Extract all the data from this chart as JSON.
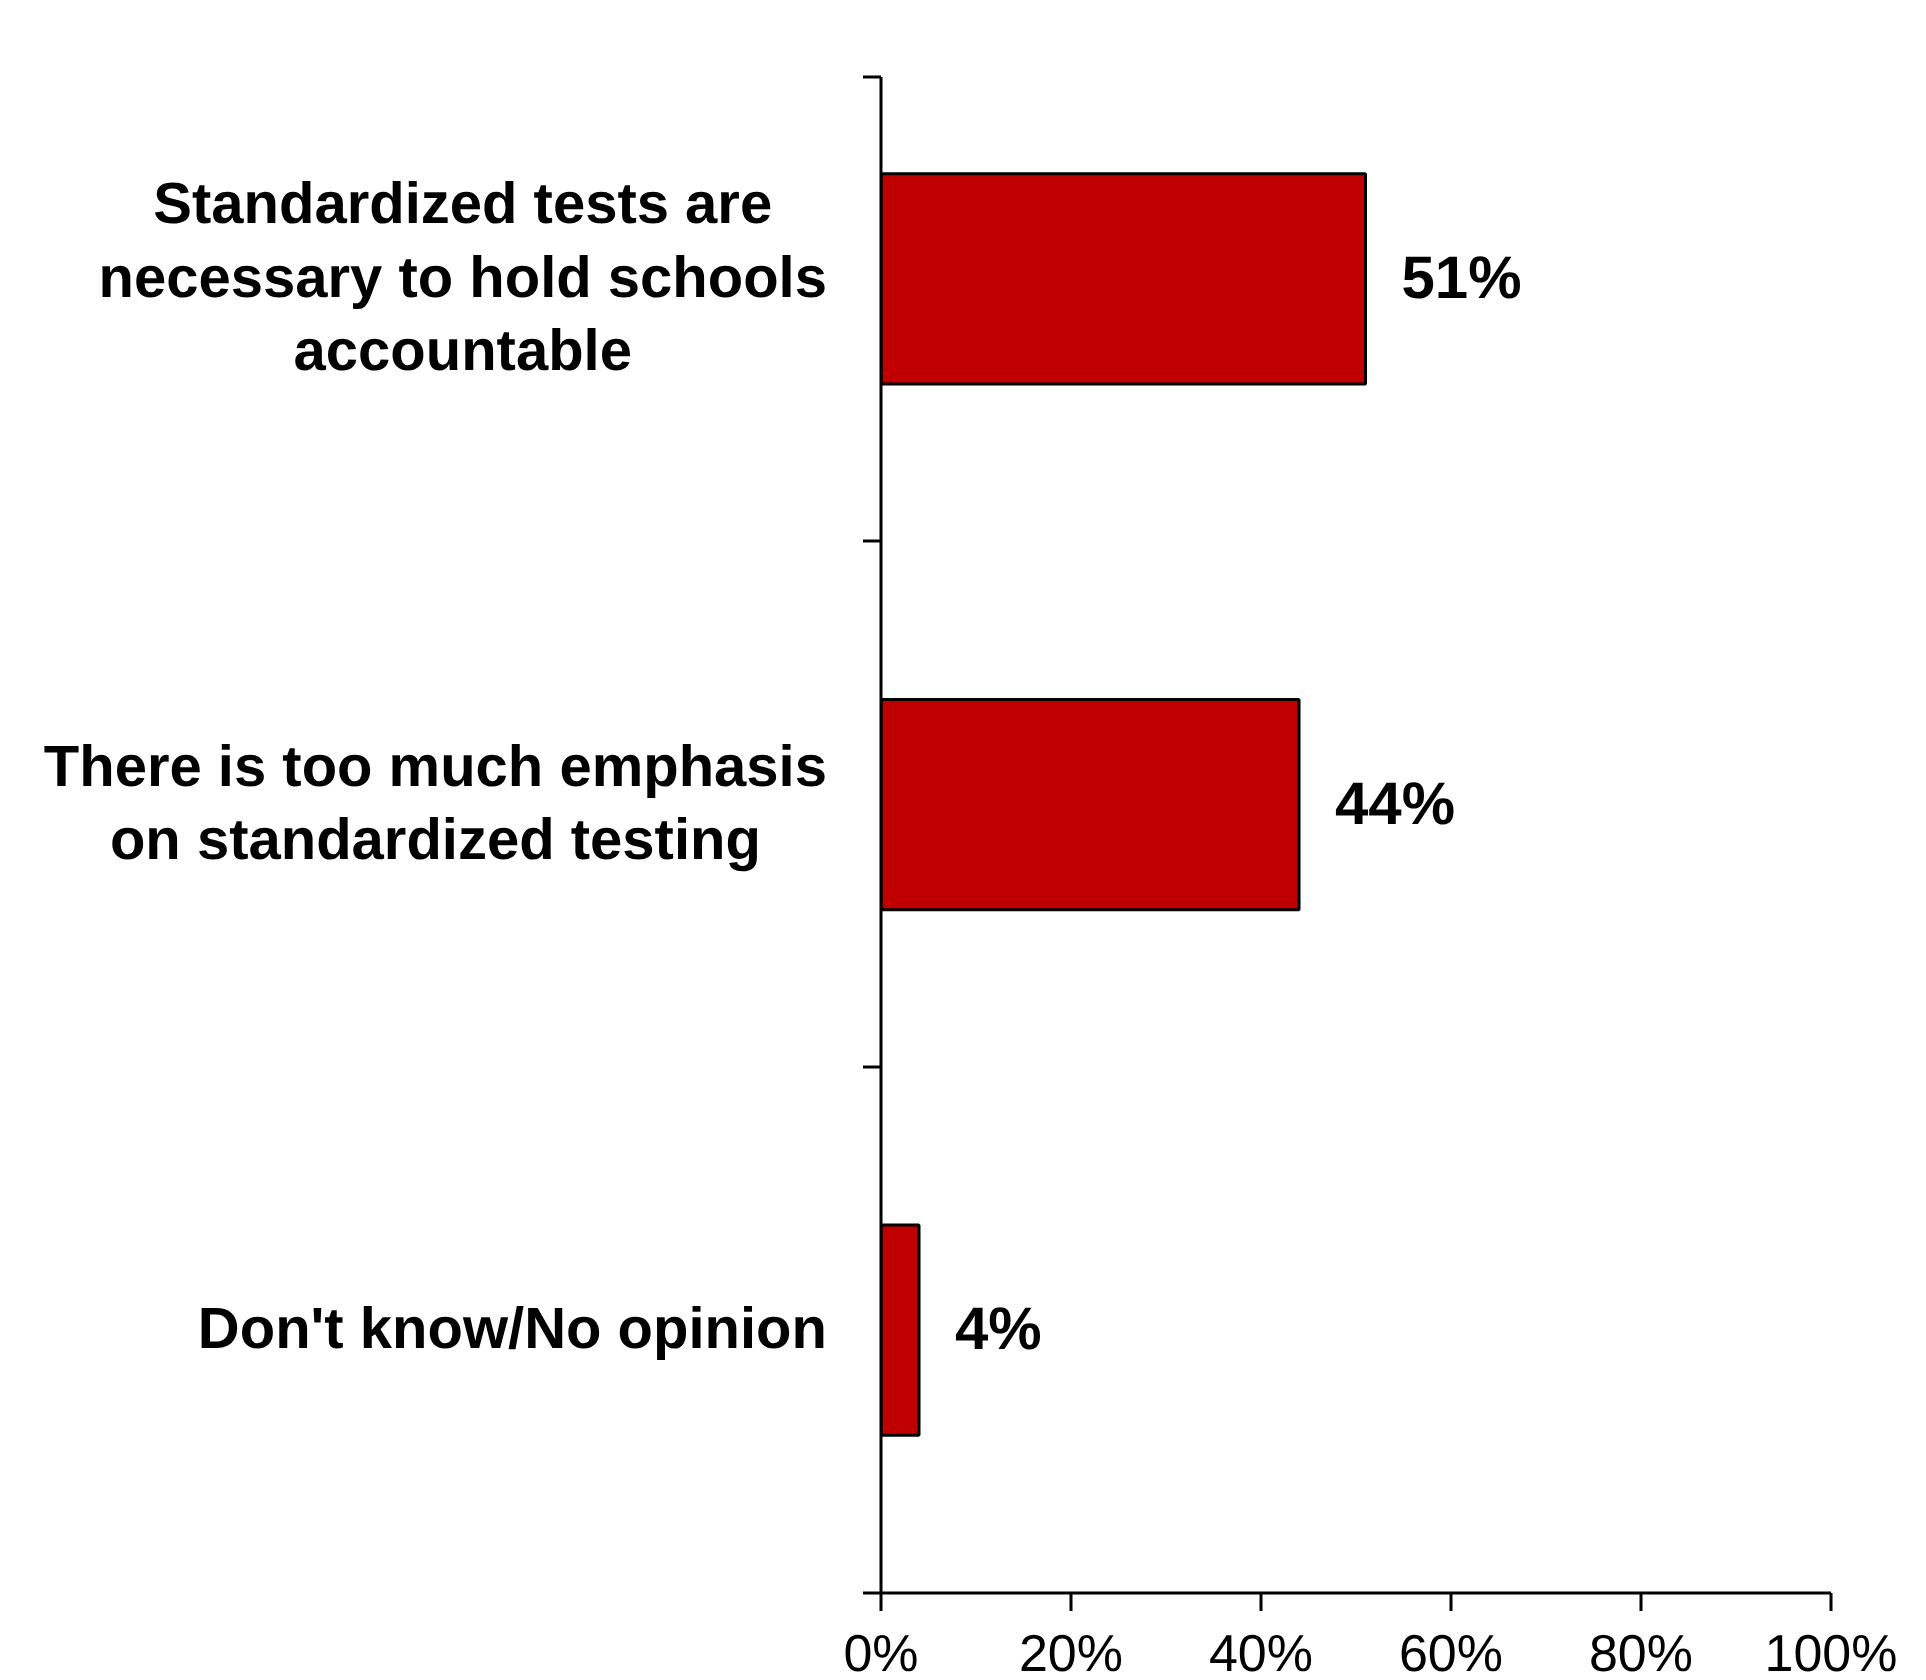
{
  "chart_data": {
    "type": "bar",
    "orientation": "horizontal",
    "categories": [
      "Standardized tests are necessary to hold schools accountable",
      "There is too much emphasis on standardized testing",
      "Don't know/No opinion"
    ],
    "values": [
      51,
      44,
      4
    ],
    "color": "#c00000",
    "xlim": [
      0,
      100
    ],
    "xticks": [
      {
        "value": 0,
        "label": "0%"
      },
      {
        "value": 20,
        "label": "20%"
      },
      {
        "value": 40,
        "label": "40%"
      },
      {
        "value": 60,
        "label": "60%"
      },
      {
        "value": 80,
        "label": "80%"
      },
      {
        "value": 100,
        "label": "100%"
      }
    ],
    "value_labels": [
      "51%",
      "44%",
      "4%"
    ]
  }
}
